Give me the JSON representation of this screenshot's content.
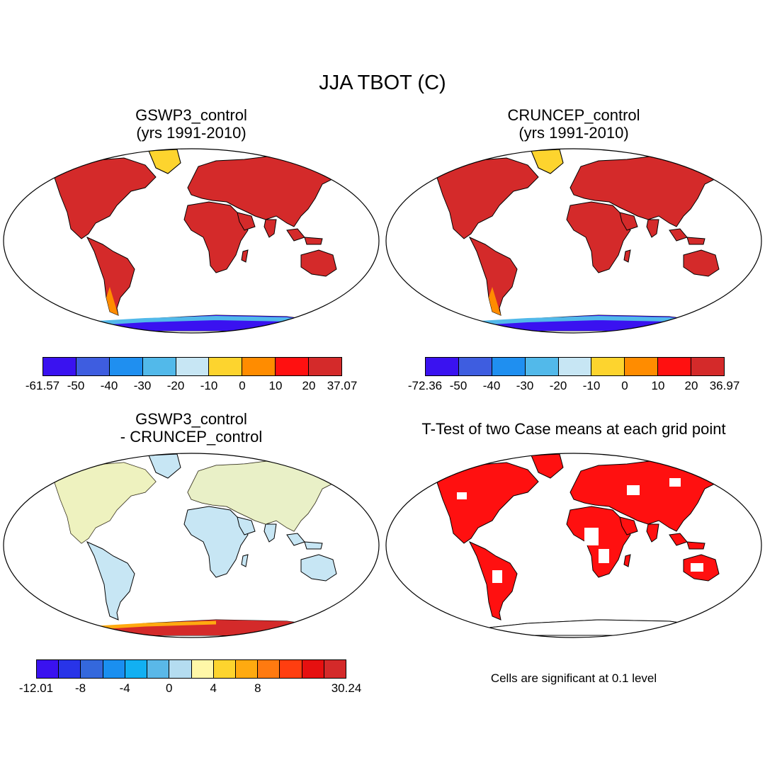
{
  "title": "JJA TBOT (C)",
  "panels": [
    {
      "title1": "GSWP3_control",
      "title2": "(yrs 1991-2010)"
    },
    {
      "title1": "CRUNCEP_control",
      "title2": " (yrs 1991-2010)"
    },
    {
      "title1": "GSWP3_control",
      "title2": " - CRUNCEP_control"
    },
    {
      "title1": "T-Test of two Case means at each grid point"
    }
  ],
  "colorbars": [
    {
      "colors": [
        "#3a12f0",
        "#3e5de0",
        "#1f8ff0",
        "#52b9ea",
        "#c7e6f4",
        "#fdd42e",
        "#ff8c00",
        "#ff1010",
        "#d42a2a"
      ],
      "labels": [
        "-61.57",
        "-50",
        "-40",
        "-30",
        "-20",
        "-10",
        "0",
        "10",
        "20",
        "37.07"
      ]
    },
    {
      "colors": [
        "#3a12f0",
        "#3e5de0",
        "#1f8ff0",
        "#52b9ea",
        "#c7e6f4",
        "#fdd42e",
        "#ff8c00",
        "#ff1010",
        "#d42a2a"
      ],
      "labels": [
        "-72.36",
        "-50",
        "-40",
        "-30",
        "-20",
        "-10",
        "0",
        "10",
        "20",
        "36.97"
      ]
    },
    {
      "colors": [
        "#3a12f0",
        "#2834e8",
        "#3468dc",
        "#1a8ff0",
        "#12b0f2",
        "#5ab8e8",
        "#b4dcf0",
        "#fff7a8",
        "#fdd42e",
        "#ffaa10",
        "#ff7a10",
        "#ff3e10",
        "#e61010",
        "#d42a2a"
      ],
      "labels": [
        "-12.01",
        "",
        "-8",
        "",
        "-4",
        "",
        "0",
        "",
        "4",
        "",
        "8",
        "",
        "",
        "",
        "30.24"
      ]
    }
  ],
  "footnote": "Cells are significant at 0.1 level"
}
